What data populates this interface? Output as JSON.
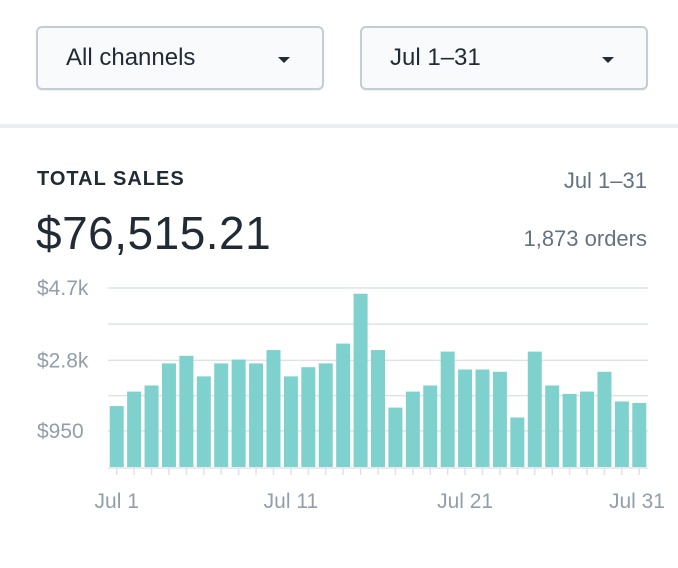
{
  "filters": {
    "channel": {
      "value": "All channels",
      "icon": "caret-down-icon"
    },
    "date_range": {
      "value": "Jul 1–31",
      "icon": "caret-down-icon"
    }
  },
  "summary": {
    "label": "TOTAL SALES",
    "range": "Jul 1–31",
    "amount": "$76,515.21",
    "orders": "1,873 orders"
  },
  "colors": {
    "bar": "#7fd1cd",
    "grid": "#dfe3e8",
    "axis_text": "#919eab"
  },
  "chart_data": {
    "type": "bar",
    "days": [
      1,
      2,
      3,
      4,
      5,
      6,
      7,
      8,
      9,
      10,
      11,
      12,
      13,
      14,
      15,
      16,
      17,
      18,
      19,
      20,
      21,
      22,
      23,
      24,
      25,
      26,
      27,
      28,
      29,
      30,
      31
    ],
    "values": [
      1600,
      1980,
      2140,
      2720,
      2920,
      2380,
      2720,
      2820,
      2720,
      3070,
      2380,
      2620,
      2720,
      3240,
      4550,
      3070,
      1560,
      1980,
      2140,
      3030,
      2560,
      2560,
      2500,
      1300,
      3030,
      2140,
      1920,
      1980,
      2500,
      1720,
      1680
    ],
    "y_ticks": [
      {
        "value": 950,
        "label": "$950"
      },
      {
        "value": 2800,
        "label": "$2.8k"
      },
      {
        "value": 4700,
        "label": "$4.7k"
      }
    ],
    "x_ticks": [
      {
        "day": 1,
        "label": "Jul 1"
      },
      {
        "day": 11,
        "label": "Jul 11"
      },
      {
        "day": 21,
        "label": "Jul 21"
      },
      {
        "day": 31,
        "label": "Jul 31"
      }
    ],
    "ylim": [
      0,
      4700
    ],
    "grid": true,
    "xlabel": "",
    "ylabel": ""
  }
}
